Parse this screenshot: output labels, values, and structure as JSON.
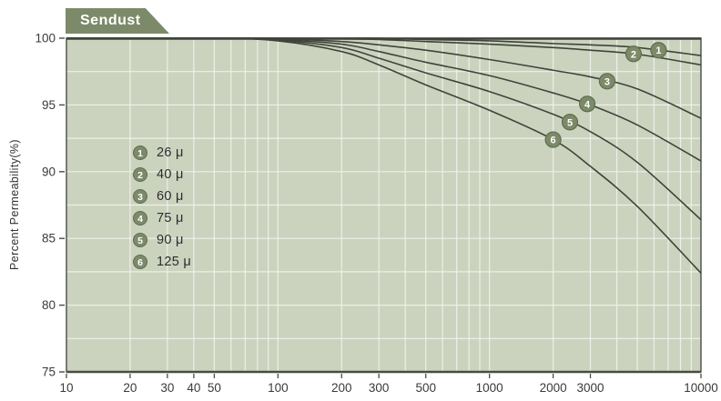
{
  "title_tab": {
    "label": "Sendust"
  },
  "axes": {
    "y_title": "Percent Permeability(%)"
  },
  "colors": {
    "plot_bg": "#cbd3bf",
    "grid": "#f3f5ee",
    "curve": "#3f443a",
    "axis": "#4a4d42",
    "tab_bg": "#7c8a69",
    "tab_text": "#ffffff",
    "marker_fill": "#7c8a69",
    "marker_ring": "#5f6d4e",
    "marker_text": "#ffffff",
    "tick_text": "#3a3a3a"
  },
  "chart_data": {
    "type": "line",
    "title": "Sendust",
    "xlabel": "",
    "ylabel": "Percent Permeability(%)",
    "x_scale": "log",
    "xlim": [
      10,
      10000
    ],
    "ylim": [
      75,
      100
    ],
    "y_grid_step": 2.5,
    "grid": true,
    "legend_position": "inside-left",
    "x_ticks": [
      "10",
      "20",
      "30",
      "40",
      "50",
      "100",
      "200",
      "300",
      "500",
      "1000",
      "2000",
      "3000",
      "10000"
    ],
    "y_ticks": [
      "100",
      "95",
      "90",
      "85",
      "80",
      "75"
    ],
    "x": [
      10,
      50,
      100,
      200,
      300,
      500,
      1000,
      2000,
      3000,
      5000,
      10000
    ],
    "series": [
      {
        "id": "1",
        "name": "26 μ",
        "marker_x": 6300,
        "values": [
          100,
          100,
          100,
          100,
          100,
          99.9,
          99.8,
          99.6,
          99.5,
          99.3,
          98.7
        ]
      },
      {
        "id": "2",
        "name": "40 μ",
        "marker_x": 4800,
        "values": [
          100,
          100,
          100,
          99.95,
          99.9,
          99.75,
          99.55,
          99.3,
          99.1,
          98.8,
          98.0
        ]
      },
      {
        "id": "3",
        "name": "60 μ",
        "marker_x": 3600,
        "values": [
          100,
          100,
          99.95,
          99.75,
          99.5,
          99.1,
          98.4,
          97.6,
          97.1,
          96.2,
          94.0
        ]
      },
      {
        "id": "4",
        "name": "75 μ",
        "marker_x": 2900,
        "values": [
          100,
          100,
          99.9,
          99.55,
          99.0,
          98.2,
          97.2,
          95.9,
          95.0,
          93.5,
          90.8
        ]
      },
      {
        "id": "5",
        "name": "90 μ",
        "marker_x": 2400,
        "values": [
          100,
          100,
          99.85,
          99.3,
          98.5,
          97.4,
          96.0,
          94.3,
          93.0,
          90.7,
          86.4
        ]
      },
      {
        "id": "6",
        "name": "125 μ",
        "marker_x": 2000,
        "values": [
          100,
          100,
          99.8,
          99.0,
          98.0,
          96.5,
          94.6,
          92.4,
          90.4,
          87.4,
          82.4
        ]
      }
    ]
  }
}
